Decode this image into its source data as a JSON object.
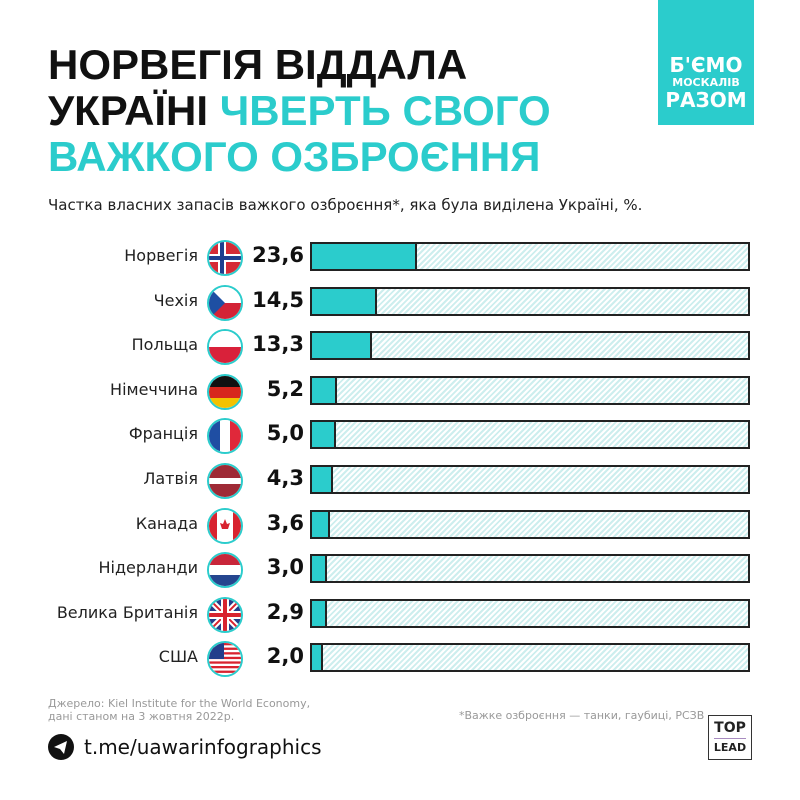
{
  "header": {
    "title_line1": "НОРВЕГІЯ ВІДДАЛА",
    "title_line2_black": "УКРАЇНІ",
    "title_line2_accent": "ЧВЕРТЬ СВОГО",
    "title_line3_accent": "ВАЖКОГО ОЗБРОЄННЯ",
    "badge": [
      "Б'ЄМО",
      "МОСКАЛІВ",
      "РАЗОМ"
    ]
  },
  "colors": {
    "accent": "#2bcccc",
    "hatch": "#cdeeee",
    "border": "#222222"
  },
  "chart_data": {
    "type": "bar",
    "orientation": "horizontal",
    "title": "Частка власних запасів важкого озброєння*, яка була виділена Україні, %.",
    "categories": [
      "Норвегія",
      "Чехія",
      "Польща",
      "Німеччина",
      "Франція",
      "Латвія",
      "Канада",
      "Нідерланди",
      "Велика Британія",
      "США"
    ],
    "values": [
      23.6,
      14.5,
      13.3,
      5.2,
      5.0,
      4.3,
      3.6,
      3.0,
      2.9,
      2.0
    ],
    "value_labels": [
      "23,6",
      "14,5",
      "13,3",
      "5,2",
      "5,0",
      "4,3",
      "3,6",
      "3,0",
      "2,9",
      "2,0"
    ],
    "flags": [
      "norway",
      "czechia",
      "poland",
      "germany",
      "france",
      "latvia",
      "canada",
      "netherlands",
      "uk",
      "usa"
    ],
    "xlim": [
      0,
      100
    ],
    "grid": false
  },
  "footer": {
    "source_line1": "Джерело: Kiel Institute for the World Economy,",
    "source_line2": "дані станом на 3 жовтня 2022р.",
    "note": "*Важке озброєння — танки, гаубиці, РСЗВ",
    "telegram": "t.me/uawarinfographics",
    "logo_top": "TOP",
    "logo_bottom": "LEAD"
  }
}
